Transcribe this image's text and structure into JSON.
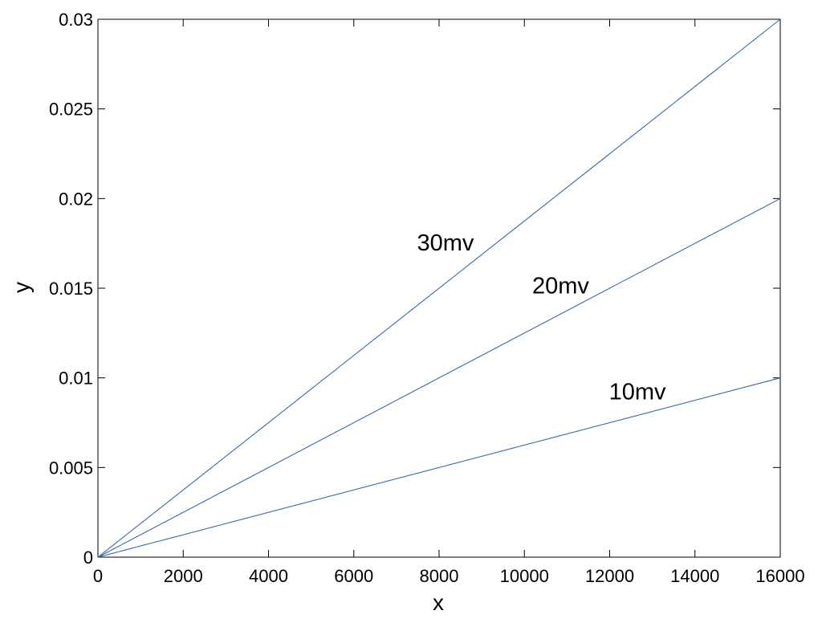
{
  "chart_data": {
    "type": "line",
    "title": "",
    "xlabel": "x",
    "ylabel": "y",
    "xlim": [
      0,
      16000
    ],
    "ylim": [
      0,
      0.03
    ],
    "x_ticks": [
      0,
      2000,
      4000,
      6000,
      8000,
      10000,
      12000,
      14000,
      16000
    ],
    "x_tick_labels": [
      "0",
      "2000",
      "4000",
      "6000",
      "8000",
      "10000",
      "12000",
      "14000",
      "16000"
    ],
    "y_ticks": [
      0,
      0.005,
      0.01,
      0.015,
      0.02,
      0.025,
      0.03
    ],
    "y_tick_labels": [
      "0",
      "0.005",
      "0.01",
      "0.015",
      "0.02",
      "0.025",
      "0.03"
    ],
    "grid": false,
    "legend": "none",
    "line_color": "#3a68a8",
    "series": [
      {
        "name": "30mv",
        "x": [
          0,
          16000
        ],
        "y": [
          0,
          0.03
        ],
        "label_at": {
          "x": 8150,
          "y": 0.0171
        }
      },
      {
        "name": "20mv",
        "x": [
          0,
          16000
        ],
        "y": [
          0,
          0.02
        ],
        "label_at": {
          "x": 10850,
          "y": 0.0147
        }
      },
      {
        "name": "10mv",
        "x": [
          0,
          16000
        ],
        "y": [
          0,
          0.01
        ],
        "label_at": {
          "x": 12650,
          "y": 0.0088
        }
      }
    ]
  }
}
